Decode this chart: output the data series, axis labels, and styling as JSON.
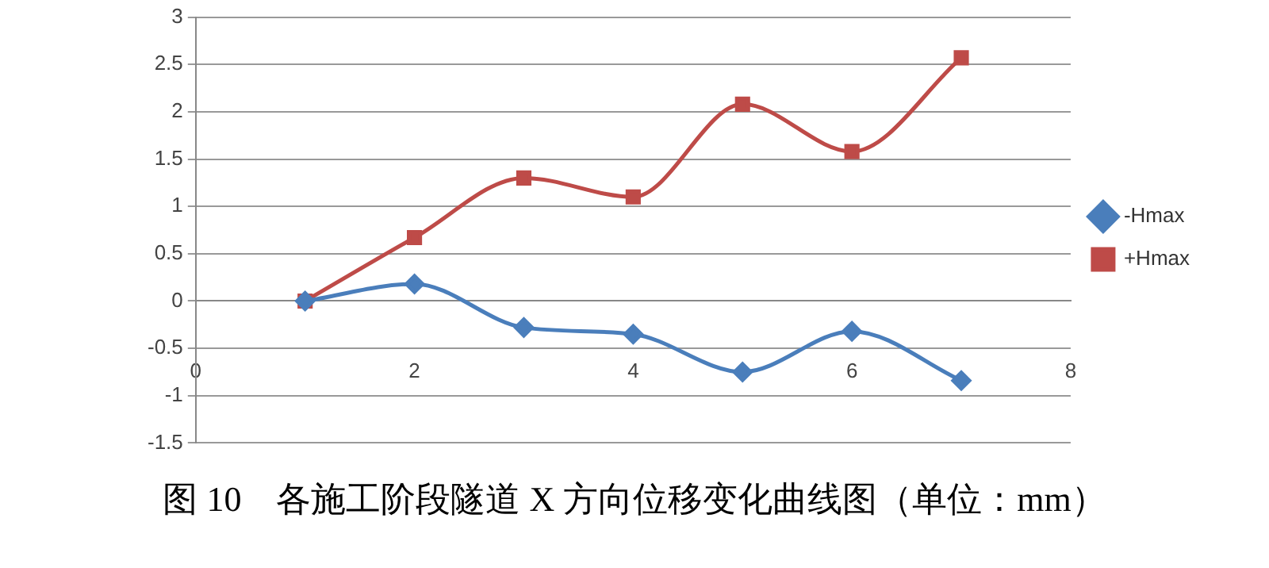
{
  "chart_data": {
    "type": "line",
    "title": "图 10　各施工阶段隧道 X 方向位移变化曲线图（单位：mm）",
    "x": [
      1,
      2,
      3,
      4,
      5,
      6,
      7
    ],
    "series": [
      {
        "name": "-Hmax",
        "color": "#4a7ebb",
        "marker": "diamond",
        "values": [
          0,
          0.18,
          -0.28,
          -0.35,
          -0.75,
          -0.32,
          -0.84
        ]
      },
      {
        "name": "+Hmax",
        "color": "#be4b48",
        "marker": "square",
        "values": [
          0,
          0.67,
          1.3,
          1.1,
          2.08,
          1.58,
          2.57
        ]
      }
    ],
    "xlim": [
      0,
      8
    ],
    "xticks": [
      0,
      2,
      4,
      6,
      8
    ],
    "ylim": [
      -1.5,
      3
    ],
    "yticks": [
      -1.5,
      -1,
      -0.5,
      0,
      0.5,
      1,
      1.5,
      2,
      2.5,
      3
    ],
    "grid": "y",
    "legend": "right"
  }
}
